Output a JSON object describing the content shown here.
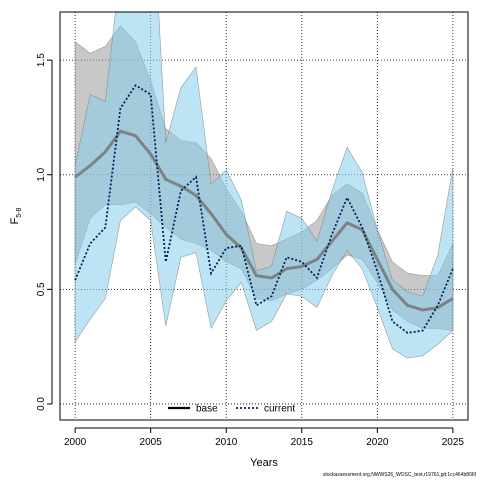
{
  "chart_data": {
    "type": "line",
    "xlabel": "Years",
    "ylabel": "F",
    "ylabel_subscript": "5-8",
    "xlim": [
      1999,
      2026
    ],
    "ylim": [
      -0.07,
      1.71
    ],
    "x_ticks": [
      2000,
      2005,
      2010,
      2015,
      2020,
      2025
    ],
    "y_ticks": [
      0.0,
      0.5,
      1.0,
      1.5
    ],
    "y_tick_labels": [
      "0.0",
      "0.5",
      "1.0",
      "1.5"
    ],
    "grid": true,
    "legend_placement": "bottom-center",
    "x": [
      2000,
      2001,
      2002,
      2003,
      2004,
      2005,
      2006,
      2007,
      2008,
      2009,
      2010,
      2011,
      2012,
      2013,
      2014,
      2015,
      2016,
      2017,
      2018,
      2019,
      2020,
      2021,
      2022,
      2023,
      2024,
      2025
    ],
    "series": [
      {
        "name": "base",
        "style": "solid",
        "line_color": "#707070",
        "band_color": "#9a9a9a",
        "values": [
          0.99,
          1.04,
          1.1,
          1.19,
          1.17,
          1.09,
          0.98,
          0.95,
          0.91,
          0.83,
          0.74,
          0.68,
          0.56,
          0.55,
          0.59,
          0.6,
          0.63,
          0.71,
          0.79,
          0.76,
          0.63,
          0.5,
          0.43,
          0.41,
          0.42,
          0.46
        ],
        "lower": [
          0.61,
          0.81,
          0.87,
          0.87,
          0.88,
          0.83,
          0.77,
          0.72,
          0.7,
          0.67,
          0.62,
          0.59,
          0.46,
          0.45,
          0.48,
          0.5,
          0.54,
          0.59,
          0.65,
          0.63,
          0.53,
          0.41,
          0.36,
          0.33,
          0.33,
          0.32
        ],
        "upper": [
          1.58,
          1.53,
          1.56,
          1.65,
          1.58,
          1.41,
          1.2,
          1.15,
          1.14,
          1.07,
          0.94,
          0.84,
          0.7,
          0.69,
          0.72,
          0.75,
          0.8,
          0.91,
          0.96,
          0.92,
          0.76,
          0.62,
          0.57,
          0.56,
          0.56,
          0.7
        ]
      },
      {
        "name": "current",
        "style": "dotted",
        "line_color": "#00205e",
        "band_color": "#87ceeb",
        "values": [
          0.54,
          0.7,
          0.77,
          1.29,
          1.39,
          1.35,
          0.62,
          0.93,
          0.99,
          0.57,
          0.68,
          0.69,
          0.43,
          0.47,
          0.64,
          0.62,
          0.55,
          0.74,
          0.9,
          0.77,
          0.58,
          0.36,
          0.31,
          0.32,
          0.43,
          0.59
        ],
        "lower": [
          0.27,
          0.37,
          0.46,
          0.8,
          0.86,
          0.8,
          0.34,
          0.64,
          0.66,
          0.33,
          0.45,
          0.53,
          0.32,
          0.36,
          0.48,
          0.47,
          0.42,
          0.56,
          0.67,
          0.59,
          0.42,
          0.24,
          0.2,
          0.21,
          0.26,
          0.32
        ],
        "upper": [
          1.04,
          1.35,
          1.32,
          1.9,
          2.25,
          2.35,
          1.14,
          1.38,
          1.47,
          0.96,
          1.02,
          0.89,
          0.58,
          0.6,
          0.84,
          0.81,
          0.71,
          0.93,
          1.12,
          1.01,
          0.76,
          0.54,
          0.49,
          0.47,
          0.65,
          1.03
        ]
      }
    ],
    "footer": "stockassessment.org,NWWS26_WOSC_test,r19761,git:1cc464b806f"
  }
}
